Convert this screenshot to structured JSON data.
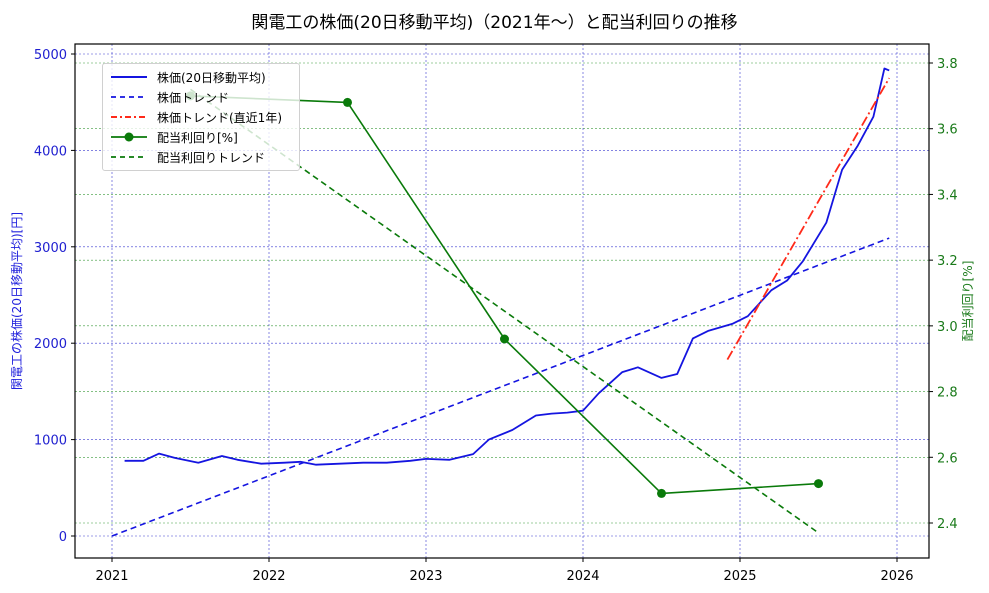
{
  "title": "関電工の株価(20日移動平均)（2021年〜）と配当利回りの推移",
  "left_axis": {
    "label": "関電工の株価(20日移動平均)[円]",
    "ticks": [
      "0",
      "1000",
      "2000",
      "3000",
      "4000",
      "5000"
    ],
    "color": "#2222dd"
  },
  "right_axis": {
    "label": "配当利回り[%]",
    "ticks": [
      "2.4",
      "2.6",
      "2.8",
      "3.0",
      "3.2",
      "3.4",
      "3.6",
      "3.8"
    ],
    "color": "#1a7a1a"
  },
  "x_axis": {
    "ticks": [
      "2021",
      "2022",
      "2023",
      "2024",
      "2025",
      "2026"
    ]
  },
  "legend": [
    {
      "label": "株価(20日移動平均)",
      "style": "solid",
      "color": "#1515e0"
    },
    {
      "label": "株価トレンド",
      "style": "dashed",
      "color": "#1515e0"
    },
    {
      "label": "株価トレンド(直近1年)",
      "style": "dashdot",
      "color": "#ff2a1a"
    },
    {
      "label": "配当利回り[%]",
      "style": "solid-marker",
      "color": "#0a7a0a"
    },
    {
      "label": "配当利回りトレンド",
      "style": "dashed",
      "color": "#0a7a0a"
    }
  ],
  "chart_data": {
    "type": "line",
    "title": "関電工の株価(20日移動平均)（2021年〜）と配当利回りの推移",
    "xlabel": "",
    "ylabel": "関電工の株価(20日移動平均)[円]",
    "ylabel_right": "配当利回り[%]",
    "xlim": [
      2020.75,
      2026.2
    ],
    "ylim": [
      -230,
      5100
    ],
    "ylim_right": [
      2.29,
      3.86
    ],
    "grid": true,
    "legend_position": "upper left",
    "series": [
      {
        "name": "株価(20日移動平均)",
        "axis": "left",
        "x": [
          2021.08,
          2021.2,
          2021.3,
          2021.4,
          2021.55,
          2021.7,
          2021.8,
          2021.95,
          2022.1,
          2022.2,
          2022.3,
          2022.45,
          2022.6,
          2022.75,
          2022.9,
          2023.0,
          2023.15,
          2023.3,
          2023.4,
          2023.55,
          2023.7,
          2023.8,
          2023.9,
          2024.0,
          2024.1,
          2024.25,
          2024.35,
          2024.5,
          2024.6,
          2024.7,
          2024.8,
          2024.95,
          2025.05,
          2025.2,
          2025.3,
          2025.4,
          2025.55,
          2025.65,
          2025.75,
          2025.85,
          2025.92,
          2025.95
        ],
        "values": [
          780,
          780,
          855,
          810,
          760,
          830,
          790,
          750,
          760,
          770,
          740,
          750,
          760,
          760,
          780,
          800,
          790,
          850,
          1000,
          1100,
          1250,
          1270,
          1280,
          1300,
          1480,
          1700,
          1750,
          1640,
          1680,
          2050,
          2130,
          2200,
          2280,
          2550,
          2650,
          2850,
          3250,
          3800,
          4050,
          4350,
          4850,
          4830
        ]
      },
      {
        "name": "株価トレンド",
        "axis": "left",
        "x": [
          2021.0,
          2025.95
        ],
        "values": [
          0,
          3090
        ]
      },
      {
        "name": "株価トレンド(直近1年)",
        "axis": "left",
        "x": [
          2024.92,
          2025.95
        ],
        "values": [
          1830,
          4750
        ]
      },
      {
        "name": "配当利回り[%]",
        "axis": "right",
        "x": [
          2021.5,
          2022.5,
          2023.5,
          2024.5,
          2025.5
        ],
        "values": [
          3.7,
          3.68,
          2.96,
          2.49,
          2.52
        ]
      },
      {
        "name": "配当利回りトレンド",
        "axis": "right",
        "x": [
          2021.5,
          2025.5
        ],
        "values": [
          3.72,
          2.37
        ]
      }
    ]
  }
}
